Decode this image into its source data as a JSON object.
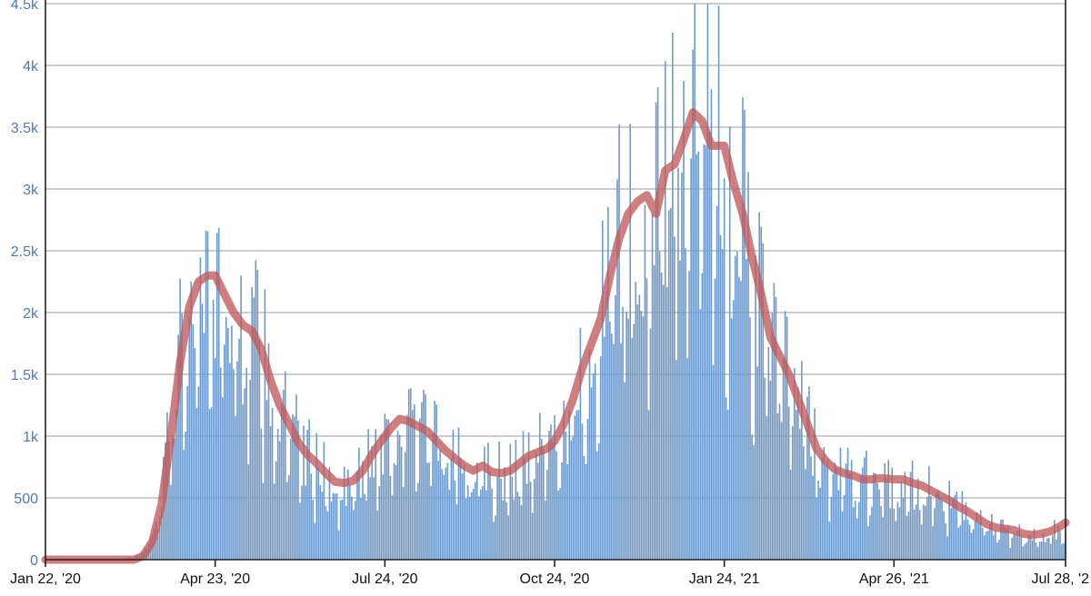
{
  "chart_data": {
    "type": "bar",
    "title": "",
    "xlabel": "",
    "ylabel": "",
    "grid": true,
    "legend": "none",
    "x_range": [
      "2020-01-22",
      "2021-07-28"
    ],
    "ylim": [
      0,
      4500
    ],
    "y_ticks": [
      0,
      500,
      1000,
      1500,
      2000,
      2500,
      3000,
      3500,
      4000,
      4500
    ],
    "y_tick_labels": [
      "0",
      "500",
      "1k",
      "1.5k",
      "2k",
      "2.5k",
      "3k",
      "3.5k",
      "4k",
      "4.5k"
    ],
    "x_ticks": [
      "2020-01-22",
      "2020-04-23",
      "2020-07-24",
      "2020-10-24",
      "2021-01-24",
      "2021-04-26",
      "2021-07-28"
    ],
    "x_tick_labels": [
      "Jan 22, '20",
      "Apr 23, '20",
      "Jul 24, '20",
      "Oct 24, '20",
      "Jan 24, '21",
      "Apr 26, '21",
      "Jul 28, '2"
    ],
    "colors": {
      "bars": "#6f9bcc",
      "trend": "#c05a5a",
      "grid": "#a9b0b8"
    },
    "series": [
      {
        "type": "bar",
        "points": [
          [
            "2020-01-22",
            0
          ],
          [
            "2020-03-01",
            0
          ],
          [
            "2020-03-10",
            20
          ],
          [
            "2020-03-15",
            80
          ],
          [
            "2020-03-20",
            250
          ],
          [
            "2020-03-25",
            600
          ],
          [
            "2020-03-30",
            1100
          ],
          [
            "2020-04-04",
            1700
          ],
          [
            "2020-04-09",
            2100
          ],
          [
            "2020-04-14",
            2250
          ],
          [
            "2020-04-19",
            2300
          ],
          [
            "2020-04-23",
            2300
          ],
          [
            "2020-04-28",
            2200
          ],
          [
            "2020-05-03",
            2050
          ],
          [
            "2020-05-08",
            1900
          ],
          [
            "2020-05-13",
            1850
          ],
          [
            "2020-05-18",
            1700
          ],
          [
            "2020-05-23",
            1450
          ],
          [
            "2020-05-28",
            1250
          ],
          [
            "2020-06-02",
            1100
          ],
          [
            "2020-06-07",
            950
          ],
          [
            "2020-06-12",
            850
          ],
          [
            "2020-06-17",
            780
          ],
          [
            "2020-06-22",
            700
          ],
          [
            "2020-06-27",
            630
          ],
          [
            "2020-07-02",
            620
          ],
          [
            "2020-07-07",
            640
          ],
          [
            "2020-07-12",
            750
          ],
          [
            "2020-07-17",
            880
          ],
          [
            "2020-07-22",
            980
          ],
          [
            "2020-07-27",
            1080
          ],
          [
            "2020-08-01",
            1140
          ],
          [
            "2020-08-06",
            1120
          ],
          [
            "2020-08-11",
            1080
          ],
          [
            "2020-08-16",
            1040
          ],
          [
            "2020-08-21",
            960
          ],
          [
            "2020-08-26",
            880
          ],
          [
            "2020-08-31",
            820
          ],
          [
            "2020-09-05",
            760
          ],
          [
            "2020-09-10",
            720
          ],
          [
            "2020-09-15",
            750
          ],
          [
            "2020-09-20",
            700
          ],
          [
            "2020-09-25",
            700
          ],
          [
            "2020-09-30",
            730
          ],
          [
            "2020-10-05",
            780
          ],
          [
            "2020-10-10",
            840
          ],
          [
            "2020-10-15",
            870
          ],
          [
            "2020-10-20",
            900
          ],
          [
            "2020-10-24",
            980
          ],
          [
            "2020-10-29",
            1100
          ],
          [
            "2020-11-03",
            1300
          ],
          [
            "2020-11-08",
            1550
          ],
          [
            "2020-11-13",
            1750
          ],
          [
            "2020-11-18",
            2000
          ],
          [
            "2020-11-23",
            2350
          ],
          [
            "2020-11-28",
            2650
          ],
          [
            "2020-12-03",
            2800
          ],
          [
            "2020-12-08",
            2900
          ],
          [
            "2020-12-13",
            2950
          ],
          [
            "2020-12-18",
            2800
          ],
          [
            "2020-12-23",
            3150
          ],
          [
            "2020-12-28",
            3200
          ],
          [
            "2021-01-02",
            3400
          ],
          [
            "2021-01-07",
            3650
          ],
          [
            "2021-01-12",
            3550
          ],
          [
            "2021-01-17",
            3350
          ],
          [
            "2021-01-24",
            3350
          ],
          [
            "2021-01-29",
            3050
          ],
          [
            "2021-02-03",
            2800
          ],
          [
            "2021-02-08",
            2450
          ],
          [
            "2021-02-13",
            2150
          ],
          [
            "2021-02-18",
            1800
          ],
          [
            "2021-02-23",
            1650
          ],
          [
            "2021-02-28",
            1500
          ],
          [
            "2021-03-05",
            1300
          ],
          [
            "2021-03-10",
            1100
          ],
          [
            "2021-03-15",
            900
          ],
          [
            "2021-03-20",
            800
          ],
          [
            "2021-03-25",
            730
          ],
          [
            "2021-03-30",
            700
          ],
          [
            "2021-04-04",
            680
          ],
          [
            "2021-04-09",
            650
          ],
          [
            "2021-04-14",
            650
          ],
          [
            "2021-04-19",
            660
          ],
          [
            "2021-04-26",
            650
          ],
          [
            "2021-05-01",
            650
          ],
          [
            "2021-05-06",
            620
          ],
          [
            "2021-05-11",
            600
          ],
          [
            "2021-05-16",
            560
          ],
          [
            "2021-05-21",
            520
          ],
          [
            "2021-05-26",
            480
          ],
          [
            "2021-05-31",
            430
          ],
          [
            "2021-06-05",
            390
          ],
          [
            "2021-06-10",
            340
          ],
          [
            "2021-06-15",
            290
          ],
          [
            "2021-06-20",
            260
          ],
          [
            "2021-06-25",
            250
          ],
          [
            "2021-06-30",
            240
          ],
          [
            "2021-07-05",
            210
          ],
          [
            "2021-07-10",
            200
          ],
          [
            "2021-07-15",
            210
          ],
          [
            "2021-07-20",
            230
          ],
          [
            "2021-07-25",
            270
          ],
          [
            "2021-07-28",
            300
          ]
        ]
      },
      {
        "type": "line",
        "points": [
          [
            "2020-01-22",
            0
          ],
          [
            "2020-03-10",
            0
          ],
          [
            "2020-03-15",
            30
          ],
          [
            "2020-03-20",
            150
          ],
          [
            "2020-03-25",
            450
          ],
          [
            "2020-03-30",
            1000
          ],
          [
            "2020-04-04",
            1600
          ],
          [
            "2020-04-09",
            2050
          ],
          [
            "2020-04-14",
            2250
          ],
          [
            "2020-04-19",
            2300
          ],
          [
            "2020-04-23",
            2300
          ],
          [
            "2020-04-28",
            2150
          ],
          [
            "2020-05-03",
            2000
          ],
          [
            "2020-05-08",
            1900
          ],
          [
            "2020-05-13",
            1850
          ],
          [
            "2020-05-18",
            1700
          ],
          [
            "2020-05-23",
            1450
          ],
          [
            "2020-05-28",
            1250
          ],
          [
            "2020-06-02",
            1100
          ],
          [
            "2020-06-07",
            950
          ],
          [
            "2020-06-12",
            850
          ],
          [
            "2020-06-17",
            780
          ],
          [
            "2020-06-22",
            700
          ],
          [
            "2020-06-27",
            630
          ],
          [
            "2020-07-02",
            620
          ],
          [
            "2020-07-07",
            640
          ],
          [
            "2020-07-12",
            720
          ],
          [
            "2020-07-17",
            850
          ],
          [
            "2020-07-22",
            960
          ],
          [
            "2020-07-27",
            1060
          ],
          [
            "2020-08-01",
            1140
          ],
          [
            "2020-08-06",
            1120
          ],
          [
            "2020-08-11",
            1080
          ],
          [
            "2020-08-16",
            1040
          ],
          [
            "2020-08-21",
            960
          ],
          [
            "2020-08-26",
            880
          ],
          [
            "2020-08-31",
            820
          ],
          [
            "2020-09-05",
            760
          ],
          [
            "2020-09-10",
            720
          ],
          [
            "2020-09-15",
            760
          ],
          [
            "2020-09-20",
            710
          ],
          [
            "2020-09-25",
            700
          ],
          [
            "2020-09-30",
            720
          ],
          [
            "2020-10-05",
            780
          ],
          [
            "2020-10-10",
            840
          ],
          [
            "2020-10-15",
            870
          ],
          [
            "2020-10-20",
            900
          ],
          [
            "2020-10-24",
            960
          ],
          [
            "2020-10-29",
            1100
          ],
          [
            "2020-11-03",
            1300
          ],
          [
            "2020-11-08",
            1550
          ],
          [
            "2020-11-13",
            1750
          ],
          [
            "2020-11-18",
            1950
          ],
          [
            "2020-11-23",
            2300
          ],
          [
            "2020-11-28",
            2600
          ],
          [
            "2020-12-03",
            2800
          ],
          [
            "2020-12-08",
            2900
          ],
          [
            "2020-12-13",
            2950
          ],
          [
            "2020-12-18",
            2800
          ],
          [
            "2020-12-23",
            3150
          ],
          [
            "2020-12-28",
            3200
          ],
          [
            "2021-01-02",
            3400
          ],
          [
            "2021-01-07",
            3620
          ],
          [
            "2021-01-12",
            3550
          ],
          [
            "2021-01-17",
            3350
          ],
          [
            "2021-01-24",
            3350
          ],
          [
            "2021-01-29",
            3050
          ],
          [
            "2021-02-03",
            2800
          ],
          [
            "2021-02-08",
            2450
          ],
          [
            "2021-02-13",
            2150
          ],
          [
            "2021-02-18",
            1800
          ],
          [
            "2021-02-23",
            1650
          ],
          [
            "2021-02-28",
            1500
          ],
          [
            "2021-03-05",
            1300
          ],
          [
            "2021-03-10",
            1100
          ],
          [
            "2021-03-15",
            900
          ],
          [
            "2021-03-20",
            800
          ],
          [
            "2021-03-25",
            730
          ],
          [
            "2021-03-30",
            700
          ],
          [
            "2021-04-04",
            680
          ],
          [
            "2021-04-09",
            650
          ],
          [
            "2021-04-14",
            650
          ],
          [
            "2021-04-19",
            660
          ],
          [
            "2021-04-26",
            650
          ],
          [
            "2021-05-01",
            650
          ],
          [
            "2021-05-06",
            620
          ],
          [
            "2021-05-11",
            600
          ],
          [
            "2021-05-16",
            560
          ],
          [
            "2021-05-21",
            520
          ],
          [
            "2021-05-26",
            480
          ],
          [
            "2021-05-31",
            430
          ],
          [
            "2021-06-05",
            390
          ],
          [
            "2021-06-10",
            340
          ],
          [
            "2021-06-15",
            290
          ],
          [
            "2021-06-20",
            260
          ],
          [
            "2021-06-25",
            250
          ],
          [
            "2021-06-30",
            240
          ],
          [
            "2021-07-05",
            210
          ],
          [
            "2021-07-10",
            200
          ],
          [
            "2021-07-15",
            210
          ],
          [
            "2021-07-20",
            230
          ],
          [
            "2021-07-25",
            270
          ],
          [
            "2021-07-28",
            300
          ]
        ]
      }
    ]
  }
}
